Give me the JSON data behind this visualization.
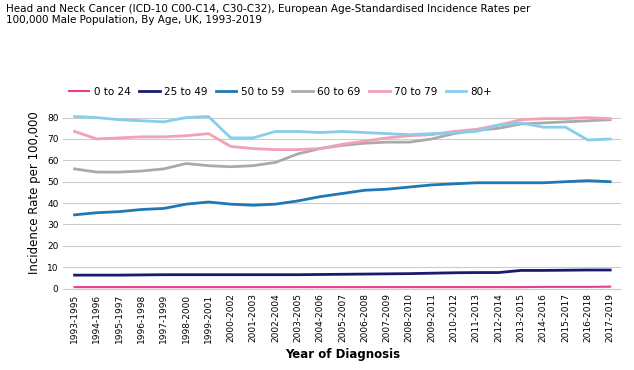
{
  "title": "Head and Neck Cancer (ICD-10 C00-C14, C30-C32), European Age-Standardised Incidence Rates per 100,000 Male Population, By Age, UK, 1993-2019",
  "xlabel": "Year of Diagnosis",
  "ylabel": "Incidence Rate per 100,000",
  "x_labels": [
    "1993-1995",
    "1994-1996",
    "1995-1997",
    "1996-1998",
    "1997-1999",
    "1998-2000",
    "1999-2001",
    "2000-2002",
    "2001-2003",
    "2002-2004",
    "2003-2005",
    "2004-2006",
    "2005-2007",
    "2006-2008",
    "2007-2009",
    "2008-2010",
    "2009-2011",
    "2010-2012",
    "2011-2013",
    "2012-2014",
    "2013-2015",
    "2014-2016",
    "2015-2017",
    "2016-2018",
    "2017-2019"
  ],
  "series": [
    {
      "label": "0 to 24",
      "color": "#e83e8c",
      "linewidth": 1.5,
      "values": [
        0.7,
        0.7,
        0.7,
        0.7,
        0.7,
        0.7,
        0.7,
        0.7,
        0.7,
        0.7,
        0.7,
        0.7,
        0.7,
        0.7,
        0.7,
        0.7,
        0.7,
        0.7,
        0.7,
        0.7,
        0.7,
        0.8,
        0.8,
        0.8,
        0.9
      ]
    },
    {
      "label": "25 to 49",
      "color": "#1a1a6e",
      "linewidth": 2.0,
      "values": [
        6.3,
        6.3,
        6.3,
        6.4,
        6.5,
        6.5,
        6.5,
        6.5,
        6.5,
        6.5,
        6.5,
        6.6,
        6.7,
        6.8,
        6.9,
        7.0,
        7.2,
        7.4,
        7.5,
        7.5,
        8.5,
        8.5,
        8.6,
        8.7,
        8.7
      ]
    },
    {
      "label": "50 to 59",
      "color": "#1f77b4",
      "linewidth": 2.0,
      "values": [
        34.5,
        35.5,
        36.0,
        37.0,
        37.5,
        39.5,
        40.5,
        39.5,
        39.0,
        39.5,
        41.0,
        43.0,
        44.5,
        46.0,
        46.5,
        47.5,
        48.5,
        49.0,
        49.5,
        49.5,
        49.5,
        49.5,
        50.0,
        50.5,
        50.0
      ]
    },
    {
      "label": "60 to 69",
      "color": "#aaaaaa",
      "linewidth": 2.0,
      "values": [
        56.0,
        54.5,
        54.5,
        55.0,
        56.0,
        58.5,
        57.5,
        57.0,
        57.5,
        59.0,
        63.0,
        65.5,
        67.0,
        68.0,
        68.5,
        68.5,
        70.0,
        72.5,
        74.0,
        75.0,
        77.0,
        77.5,
        78.0,
        78.5,
        79.0
      ]
    },
    {
      "label": "70 to 79",
      "color": "#f4a0b5",
      "linewidth": 2.0,
      "values": [
        73.5,
        70.0,
        70.5,
        71.0,
        71.0,
        71.5,
        72.5,
        66.5,
        65.5,
        65.0,
        65.0,
        65.5,
        67.5,
        69.0,
        70.5,
        71.5,
        72.0,
        73.5,
        74.5,
        76.5,
        79.0,
        79.5,
        79.5,
        80.0,
        79.5
      ]
    },
    {
      "label": "80+",
      "color": "#87ceeb",
      "linewidth": 2.0,
      "values": [
        80.5,
        80.0,
        79.0,
        78.5,
        78.0,
        80.0,
        80.5,
        70.5,
        70.5,
        73.5,
        73.5,
        73.0,
        73.5,
        73.0,
        72.5,
        72.0,
        72.5,
        73.0,
        73.5,
        76.5,
        77.5,
        75.5,
        75.5,
        69.5,
        70.0
      ]
    }
  ],
  "ylim": [
    0,
    90
  ],
  "yticks": [
    0,
    10,
    20,
    30,
    40,
    50,
    60,
    70,
    80
  ],
  "background_color": "#ffffff",
  "plot_bg_color": "#ffffff",
  "grid_color": "#cccccc",
  "title_fontsize": 7.5,
  "axis_label_fontsize": 8.5,
  "tick_fontsize": 6.5,
  "legend_fontsize": 7.5
}
